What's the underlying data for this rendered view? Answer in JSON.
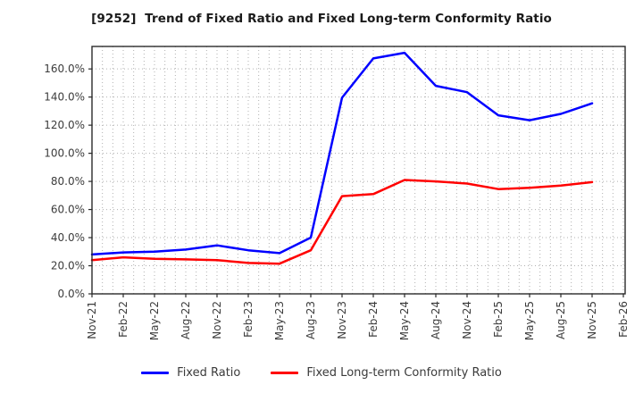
{
  "chart_data": {
    "type": "line",
    "title": "[9252]  Trend of Fixed Ratio and Fixed Long-term Conformity Ratio",
    "categories": [
      "Nov-21",
      "Feb-22",
      "May-22",
      "Aug-22",
      "Nov-22",
      "Feb-23",
      "May-23",
      "Aug-23",
      "Nov-23",
      "Feb-24",
      "May-24",
      "Aug-24",
      "Nov-24",
      "Feb-25",
      "May-25",
      "Aug-25",
      "Nov-25",
      "Feb-26"
    ],
    "series": [
      {
        "name": "Fixed Ratio",
        "color": "#0000ff",
        "values": [
          28.0,
          29.5,
          30.0,
          31.5,
          34.5,
          31.0,
          29.0,
          40.0,
          139.5,
          167.5,
          171.5,
          148.0,
          143.5,
          127.0,
          123.5,
          128.0,
          135.5,
          null
        ]
      },
      {
        "name": "Fixed Long-term Conformity Ratio",
        "color": "#ff0000",
        "values": [
          24.0,
          26.0,
          25.0,
          24.5,
          24.0,
          22.0,
          21.5,
          31.0,
          69.5,
          71.0,
          81.0,
          80.0,
          78.5,
          74.5,
          75.5,
          77.0,
          79.5,
          null
        ]
      }
    ],
    "xlabel": "",
    "ylabel": "",
    "ylim": [
      0,
      176
    ],
    "ytick_values": [
      0,
      20,
      40,
      60,
      80,
      100,
      120,
      140,
      160
    ],
    "ytick_labels": [
      "0.0%",
      "20.0%",
      "40.0%",
      "60.0%",
      "80.0%",
      "100.0%",
      "120.0%",
      "140.0%",
      "160.0%"
    ],
    "grid": "dotted; horizontal every 20%, vertical every month (labels quarterly)",
    "legend_position": "bottom-center"
  },
  "legend": {
    "items": [
      {
        "label": "Fixed Ratio",
        "color": "#0000ff"
      },
      {
        "label": "Fixed Long-term Conformity Ratio",
        "color": "#ff0000"
      }
    ]
  },
  "colors": {
    "grid": "#b0b0b0",
    "axis_border": "#2a2a2a",
    "tick_text": "#3c3c3c",
    "title_text": "#1a1a1a",
    "background": "#ffffff"
  }
}
